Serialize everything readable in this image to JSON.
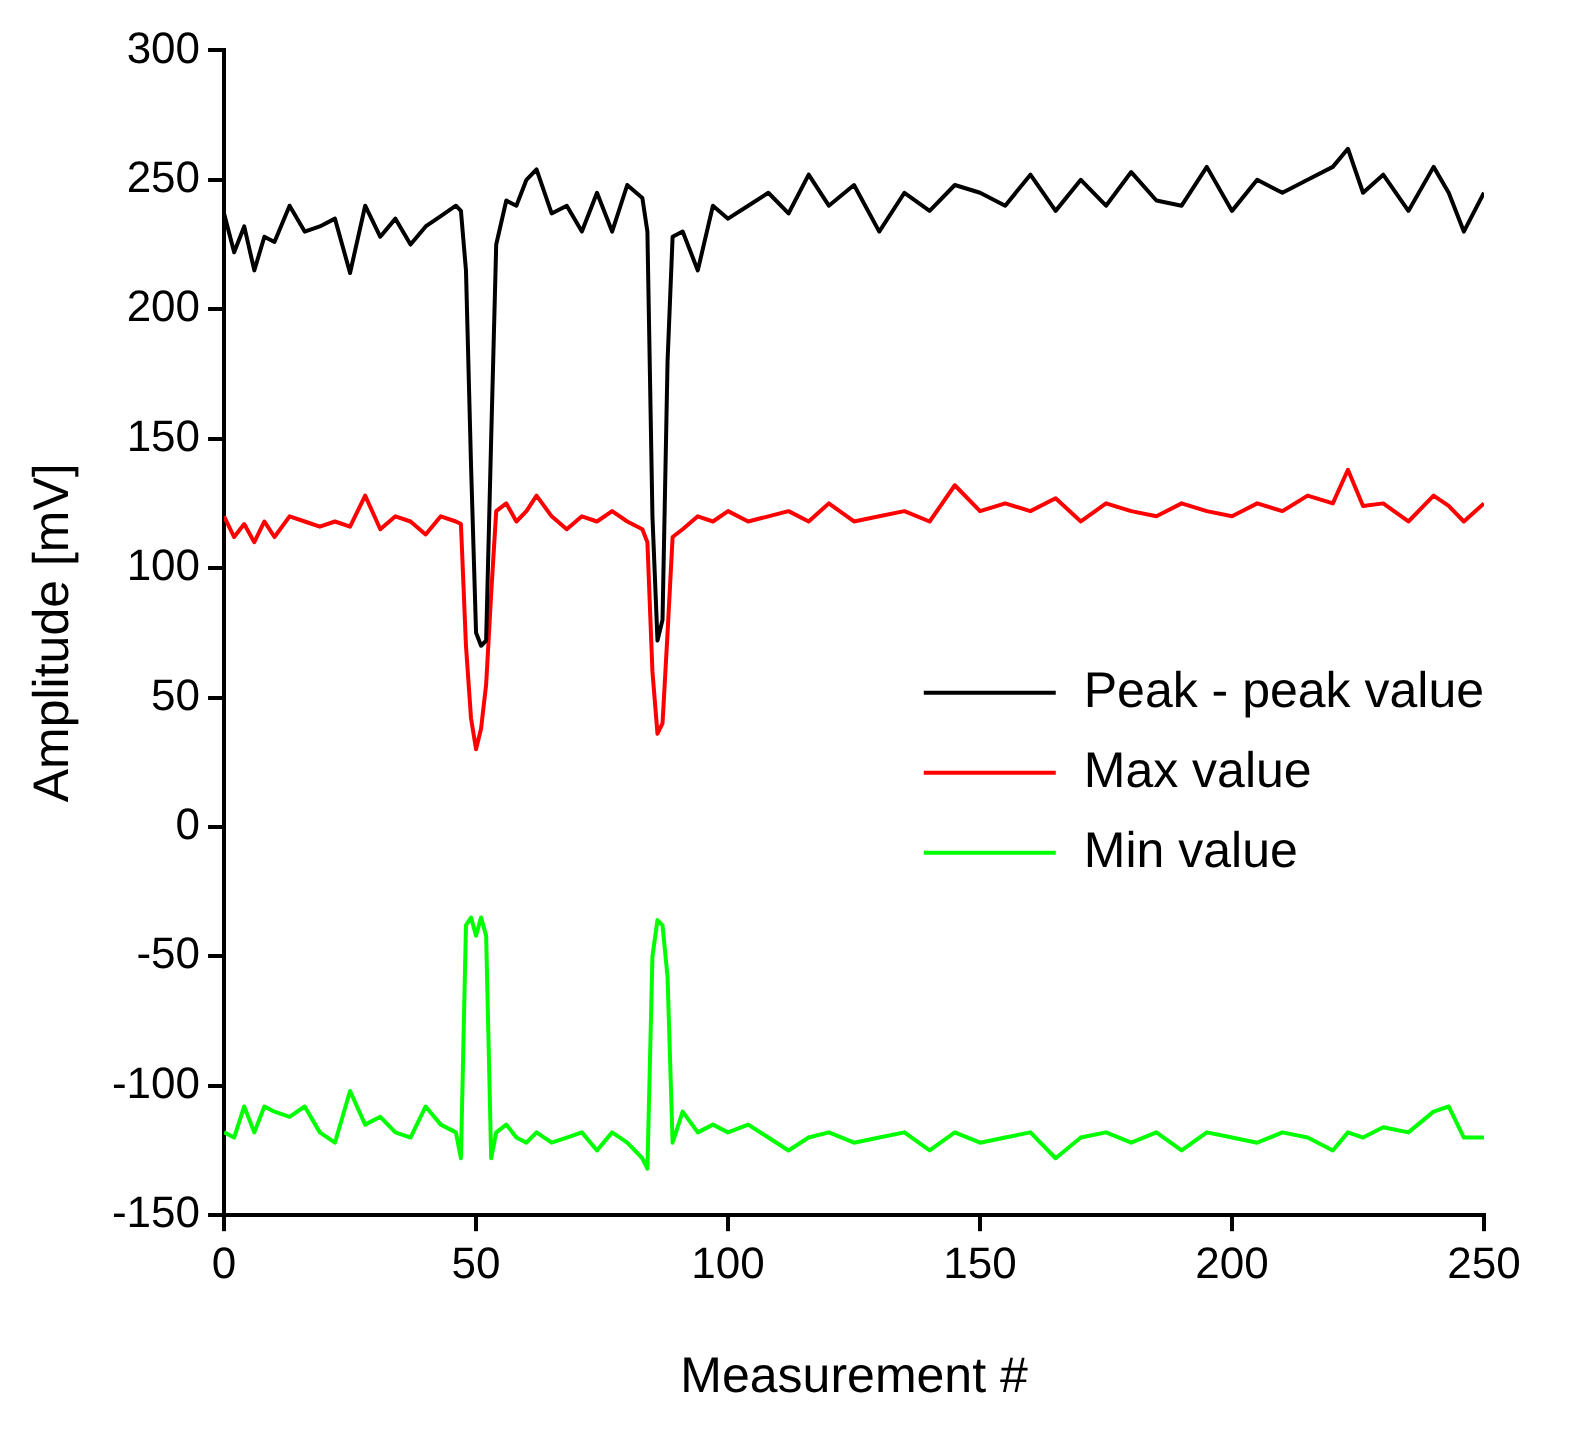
{
  "chart_data": {
    "type": "line",
    "xlabel": "Measurement #",
    "ylabel": "Amplitude [mV]",
    "xlim": [
      0,
      250
    ],
    "xticks": [
      0,
      50,
      100,
      150,
      200,
      250
    ],
    "ylim": [
      -150,
      300
    ],
    "yticks": [
      -150,
      -100,
      -50,
      0,
      50,
      100,
      150,
      200,
      250,
      300
    ],
    "grid": false,
    "legend": "right",
    "marker": "none",
    "line_style": "solid",
    "x": [
      0,
      2,
      4,
      6,
      8,
      10,
      13,
      16,
      19,
      22,
      25,
      28,
      31,
      34,
      37,
      40,
      43,
      46,
      47,
      48,
      49,
      50,
      51,
      52,
      53,
      54,
      56,
      58,
      60,
      62,
      65,
      68,
      71,
      74,
      77,
      80,
      83,
      84,
      85,
      86,
      87,
      88,
      89,
      91,
      94,
      97,
      100,
      104,
      108,
      112,
      116,
      120,
      125,
      130,
      135,
      140,
      145,
      150,
      155,
      160,
      165,
      170,
      175,
      180,
      185,
      190,
      195,
      200,
      205,
      210,
      215,
      220,
      223,
      226,
      230,
      235,
      240,
      243,
      246,
      250
    ],
    "series": [
      {
        "name": "Peak - peak value",
        "color": "#000000",
        "values": [
          237,
          222,
          232,
          215,
          228,
          226,
          240,
          230,
          232,
          235,
          214,
          240,
          228,
          235,
          225,
          232,
          236,
          240,
          238,
          215,
          140,
          75,
          70,
          72,
          150,
          225,
          242,
          240,
          250,
          254,
          237,
          240,
          230,
          245,
          230,
          248,
          243,
          230,
          120,
          72,
          80,
          180,
          228,
          230,
          215,
          240,
          235,
          240,
          245,
          237,
          252,
          240,
          248,
          230,
          245,
          238,
          248,
          245,
          240,
          252,
          238,
          250,
          240,
          253,
          242,
          240,
          255,
          238,
          250,
          245,
          250,
          255,
          262,
          245,
          252,
          238,
          255,
          245,
          230,
          245
        ]
      },
      {
        "name": "Max value",
        "color": "#ff0000",
        "values": [
          120,
          112,
          117,
          110,
          118,
          112,
          120,
          118,
          116,
          118,
          116,
          128,
          115,
          120,
          118,
          113,
          120,
          118,
          117,
          70,
          42,
          30,
          38,
          55,
          90,
          122,
          125,
          118,
          122,
          128,
          120,
          115,
          120,
          118,
          122,
          118,
          115,
          110,
          60,
          36,
          40,
          75,
          112,
          115,
          120,
          118,
          122,
          118,
          120,
          122,
          118,
          125,
          118,
          120,
          122,
          118,
          132,
          122,
          125,
          122,
          127,
          118,
          125,
          122,
          120,
          125,
          122,
          120,
          125,
          122,
          128,
          125,
          138,
          124,
          125,
          118,
          128,
          124,
          118,
          125
        ]
      },
      {
        "name": "Min value",
        "color": "#00ff00",
        "values": [
          -118,
          -120,
          -108,
          -118,
          -108,
          -110,
          -112,
          -108,
          -118,
          -122,
          -102,
          -115,
          -112,
          -118,
          -120,
          -108,
          -115,
          -118,
          -128,
          -38,
          -35,
          -42,
          -35,
          -42,
          -128,
          -118,
          -115,
          -120,
          -122,
          -118,
          -122,
          -120,
          -118,
          -125,
          -118,
          -122,
          -128,
          -132,
          -50,
          -36,
          -38,
          -58,
          -122,
          -110,
          -118,
          -115,
          -118,
          -115,
          -120,
          -125,
          -120,
          -118,
          -122,
          -120,
          -118,
          -125,
          -118,
          -122,
          -120,
          -118,
          -128,
          -120,
          -118,
          -122,
          -118,
          -125,
          -118,
          -120,
          -122,
          -118,
          -120,
          -125,
          -118,
          -120,
          -116,
          -118,
          -110,
          -108,
          -120,
          -120
        ]
      }
    ]
  }
}
